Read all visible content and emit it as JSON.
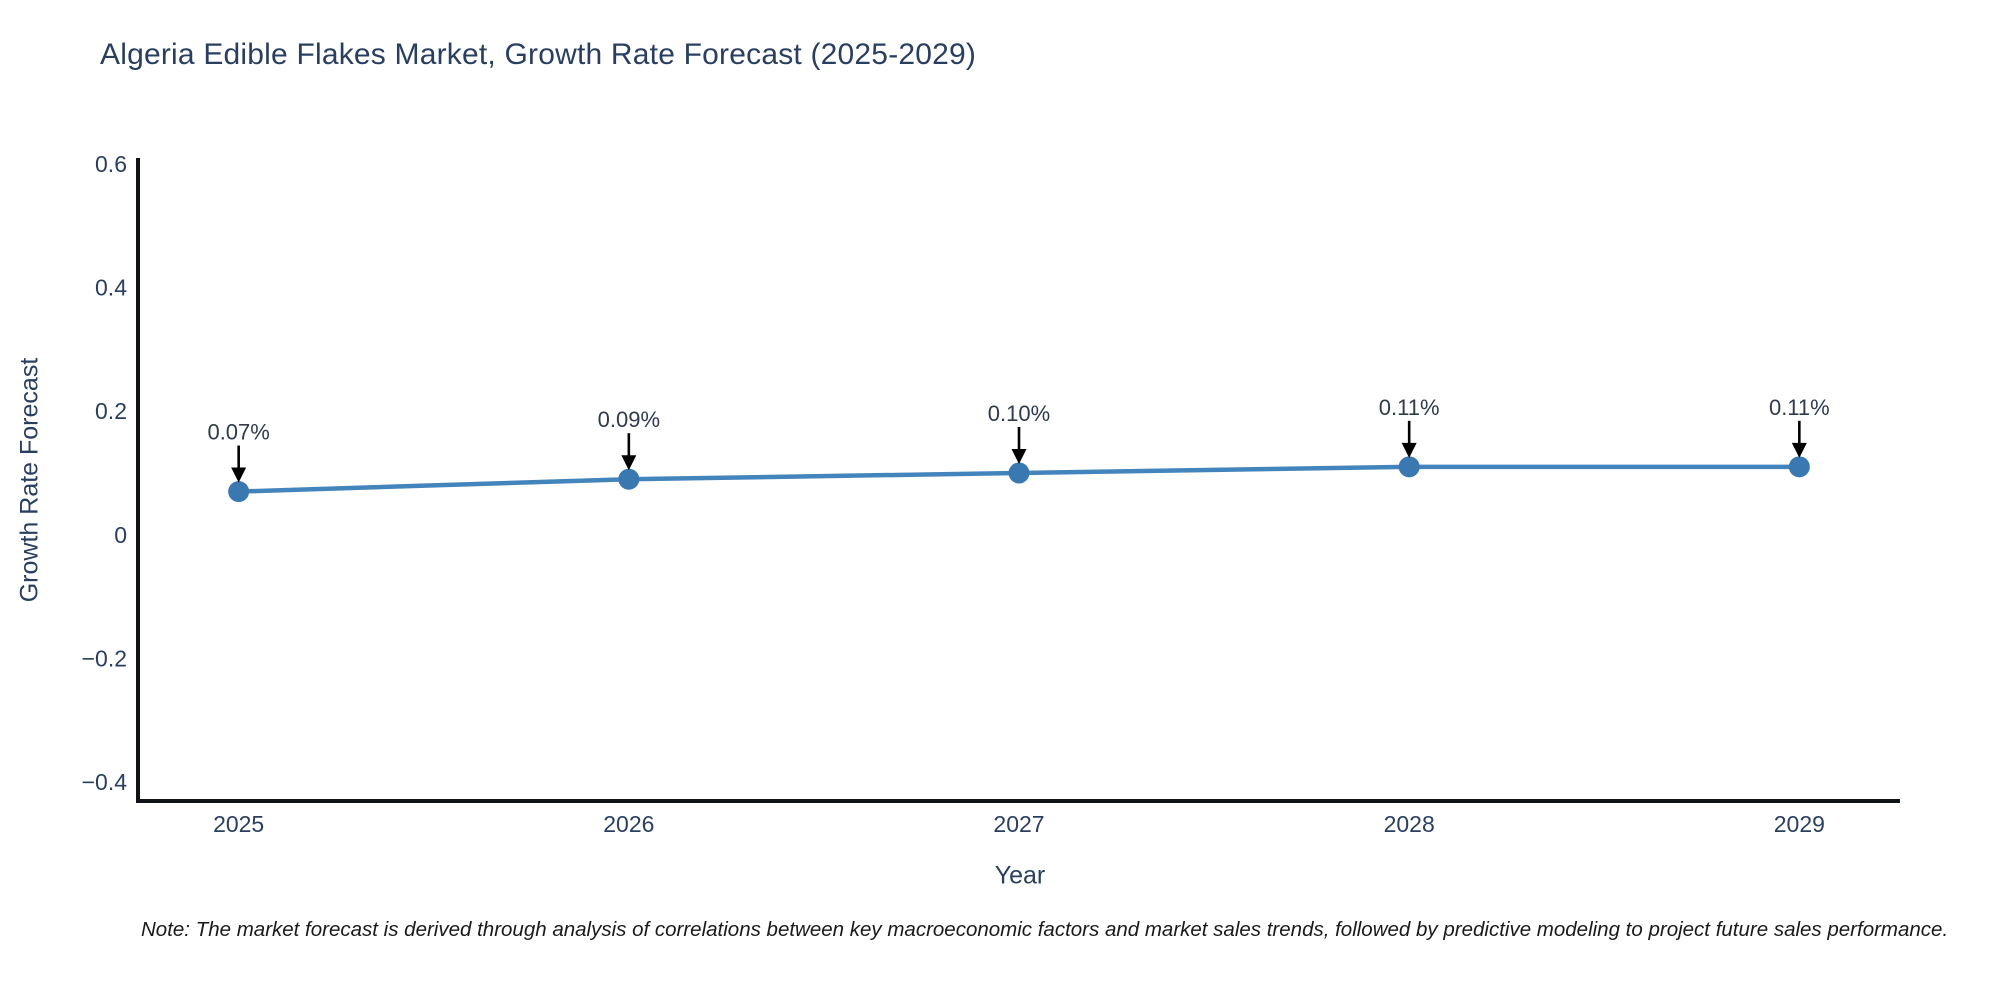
{
  "chart_data": {
    "type": "line",
    "title": "Algeria Edible Flakes Market, Growth Rate Forecast (2025-2029)",
    "xlabel": "Year",
    "ylabel": "Growth Rate Forecast",
    "x": [
      2025,
      2026,
      2027,
      2028,
      2029
    ],
    "y": [
      0.07,
      0.09,
      0.1,
      0.11,
      0.11
    ],
    "point_labels": [
      "0.07%",
      "0.09%",
      "0.10%",
      "0.11%",
      "0.11%"
    ],
    "xtick_labels": [
      "2025",
      "2026",
      "2027",
      "2028",
      "2029"
    ],
    "yticks": [
      0.6,
      0.4,
      0.2,
      0,
      -0.2,
      -0.4
    ],
    "ytick_labels": [
      "0.6",
      "0.4",
      "0.2",
      "0",
      "−0.2",
      "−0.4"
    ],
    "xlim": [
      2024.742,
      2029.258
    ],
    "ylim": [
      -0.4305,
      0.6095
    ],
    "grid": false,
    "legend": null,
    "annotation_style": "value label with downward arrow onto each marker",
    "colors": {
      "line": "#4484bd",
      "marker": "#3a78b2",
      "axis": "#101418",
      "tick_text": "#2a3f5f",
      "annotation_text": "#2f3b4c",
      "annotation_arrow": "#000000",
      "background": "#ffffff"
    }
  },
  "note": "Note: The market forecast is derived through analysis of correlations between key macroeconomic factors and market sales trends, followed by predictive modeling to project future sales performance."
}
